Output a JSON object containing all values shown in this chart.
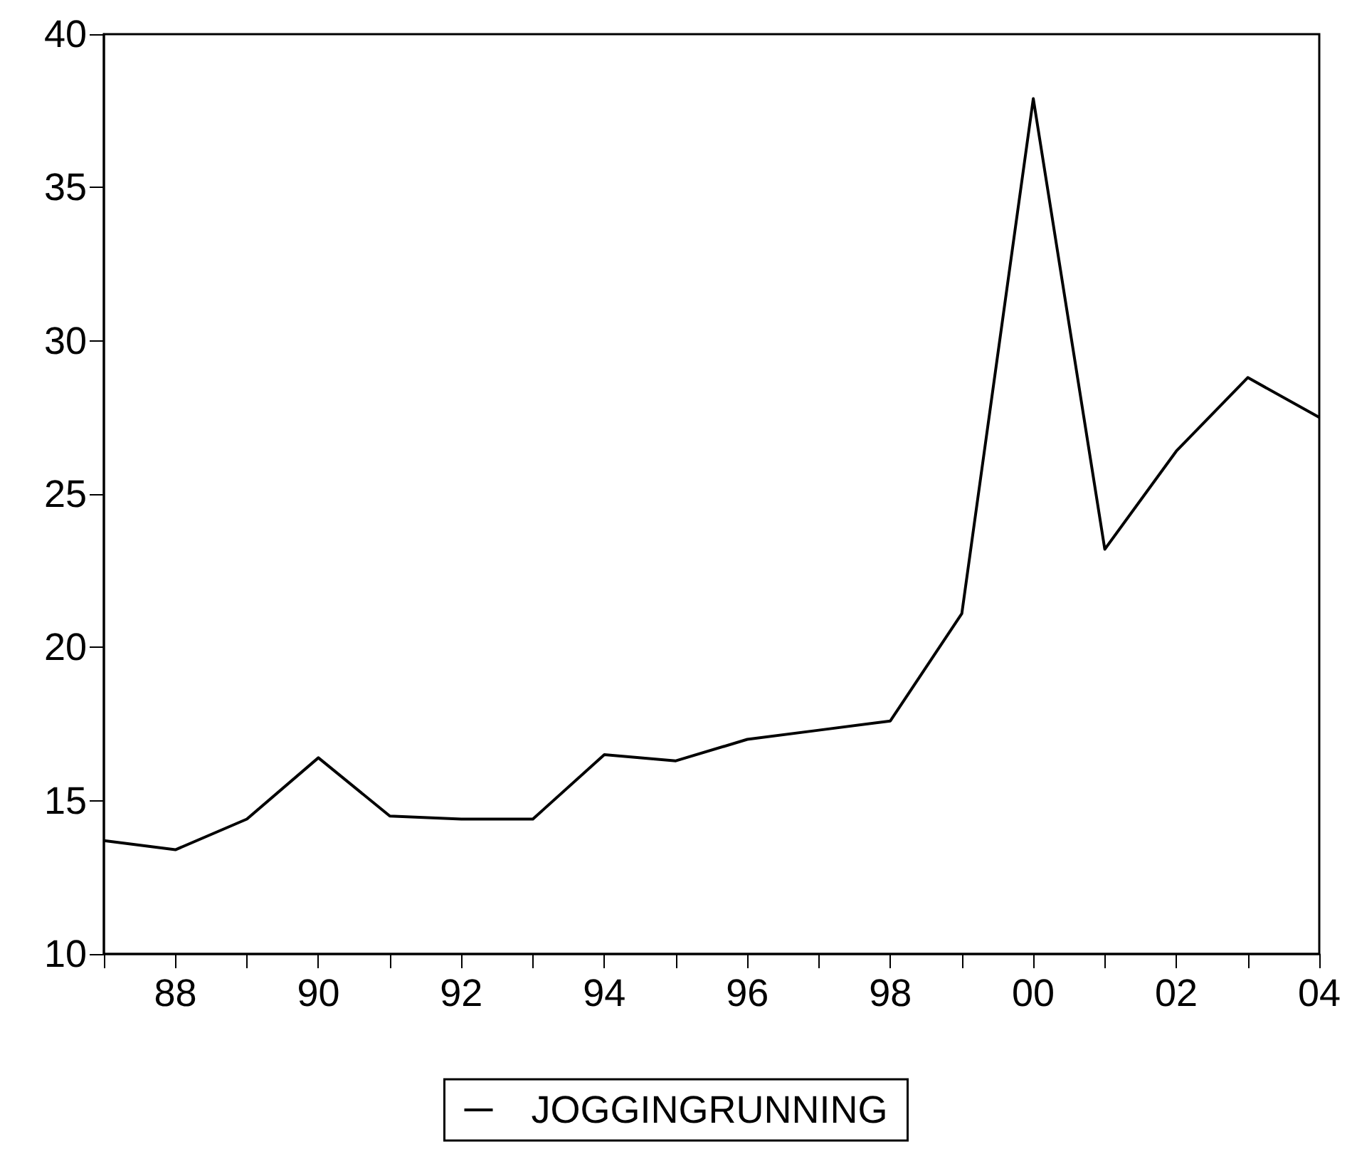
{
  "chart_data": {
    "type": "line",
    "x": [
      1987,
      1988,
      1989,
      1990,
      1991,
      1992,
      1993,
      1994,
      1995,
      1996,
      1997,
      1998,
      1999,
      2000,
      2001,
      2002,
      2003,
      2004
    ],
    "series": [
      {
        "name": "JOGGINGRUNNING",
        "color": "#000000",
        "values": [
          13.7,
          13.4,
          14.4,
          16.4,
          14.5,
          14.4,
          14.4,
          16.5,
          16.3,
          17.0,
          17.3,
          17.6,
          21.1,
          37.9,
          23.2,
          26.4,
          28.8,
          27.5
        ]
      }
    ],
    "xlim": [
      1987,
      2004
    ],
    "xticks": [
      {
        "value": 1987,
        "label": null
      },
      {
        "value": 1988,
        "label": "88"
      },
      {
        "value": 1989,
        "label": null
      },
      {
        "value": 1990,
        "label": "90"
      },
      {
        "value": 1991,
        "label": null
      },
      {
        "value": 1992,
        "label": "92"
      },
      {
        "value": 1993,
        "label": null
      },
      {
        "value": 1994,
        "label": "94"
      },
      {
        "value": 1995,
        "label": null
      },
      {
        "value": 1996,
        "label": "96"
      },
      {
        "value": 1997,
        "label": null
      },
      {
        "value": 1998,
        "label": "98"
      },
      {
        "value": 1999,
        "label": null
      },
      {
        "value": 2000,
        "label": "00"
      },
      {
        "value": 2001,
        "label": null
      },
      {
        "value": 2002,
        "label": "02"
      },
      {
        "value": 2003,
        "label": null
      },
      {
        "value": 2004,
        "label": "04"
      }
    ],
    "ylim": [
      10,
      40
    ],
    "yticks": [
      10,
      15,
      20,
      25,
      30,
      35,
      40
    ],
    "grid": false,
    "legend": "bottom",
    "marker": "none",
    "line_style": "solid"
  }
}
